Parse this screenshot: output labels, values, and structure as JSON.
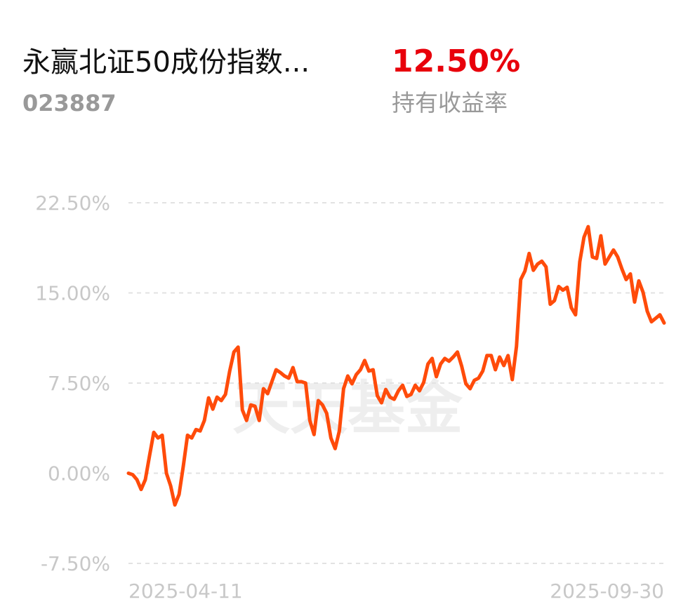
{
  "header": {
    "fund_name": "永赢北证50成份指数...",
    "fund_code": "023887",
    "holding_return": {
      "value": 12.5,
      "label": "12.50%"
    },
    "holding_return_label": "持有收益率"
  },
  "chart_data": {
    "type": "line",
    "watermark": "天天基金",
    "categories": [
      "2025-04-11",
      null,
      null,
      null,
      null,
      null,
      null,
      null,
      null,
      null,
      null,
      null,
      null,
      null,
      null,
      null,
      null,
      null,
      null,
      null,
      null,
      null,
      null,
      null,
      null,
      null,
      null,
      null,
      null,
      null,
      null,
      null,
      null,
      null,
      null,
      null,
      null,
      null,
      null,
      null,
      null,
      null,
      null,
      null,
      null,
      null,
      null,
      null,
      null,
      null,
      null,
      null,
      null,
      null,
      null,
      null,
      null,
      null,
      null,
      null,
      null,
      null,
      null,
      null,
      null,
      null,
      null,
      null,
      null,
      null,
      null,
      null,
      null,
      null,
      null,
      null,
      null,
      null,
      null,
      null,
      null,
      null,
      null,
      null,
      null,
      null,
      null,
      null,
      null,
      null,
      null,
      null,
      null,
      null,
      null,
      null,
      null,
      null,
      null,
      null,
      null,
      null,
      null,
      null,
      null,
      null,
      null,
      null,
      null,
      null,
      null,
      null,
      null,
      null,
      null,
      null,
      null,
      null,
      null,
      null,
      null,
      null,
      null,
      null,
      null,
      null,
      null,
      "2025-09-30"
    ],
    "series": [
      {
        "color": "#ff4b0a",
        "values": [
          0,
          -0.12,
          -0.53,
          -1.35,
          -0.53,
          1.46,
          3.4,
          2.93,
          3.16,
          0,
          -1.05,
          -2.64,
          -1.76,
          0.59,
          3.16,
          2.93,
          3.63,
          3.52,
          4.39,
          6.27,
          5.33,
          6.33,
          6.04,
          6.56,
          8.5,
          10.08,
          10.49,
          5.27,
          4.39,
          5.68,
          5.57,
          4.39,
          7.03,
          6.62,
          7.62,
          8.61,
          8.38,
          8.09,
          7.91,
          8.79,
          7.62,
          7.62,
          7.5,
          4.39,
          3.22,
          6.04,
          5.68,
          4.98,
          2.93,
          2.05,
          3.52,
          7.03,
          8.09,
          7.44,
          8.2,
          8.61,
          9.38,
          8.5,
          8.61,
          6.45,
          5.86,
          6.97,
          6.33,
          6.15,
          6.86,
          7.32,
          6.39,
          6.56,
          7.32,
          6.86,
          7.56,
          9.08,
          9.55,
          8.03,
          9.08,
          9.55,
          9.32,
          9.67,
          10.08,
          8.91,
          7.44,
          7.03,
          7.73,
          7.91,
          8.5,
          9.79,
          9.79,
          8.61,
          9.67,
          8.96,
          9.79,
          7.79,
          10.55,
          16.11,
          16.82,
          18.28,
          16.88,
          17.4,
          17.64,
          17.17,
          14.06,
          14.36,
          15.53,
          15.23,
          15.47,
          13.77,
          13.18,
          17.58,
          19.63,
          20.51,
          17.99,
          17.87,
          19.75,
          17.4,
          17.99,
          18.57,
          17.99,
          16.99,
          16.11,
          16.58,
          14.24,
          16.0,
          15.06,
          13.48,
          12.6,
          12.89,
          13.18,
          12.5
        ]
      }
    ],
    "ylim": [
      -7.5,
      22.5
    ],
    "yticks": [
      {
        "value": -7.5,
        "label": "-7.50%"
      },
      {
        "value": 0,
        "label": "0.00%"
      },
      {
        "value": 7.5,
        "label": "7.50%"
      },
      {
        "value": 15,
        "label": "15.00%"
      },
      {
        "value": 22.5,
        "label": "22.50%"
      }
    ],
    "grid": true
  }
}
